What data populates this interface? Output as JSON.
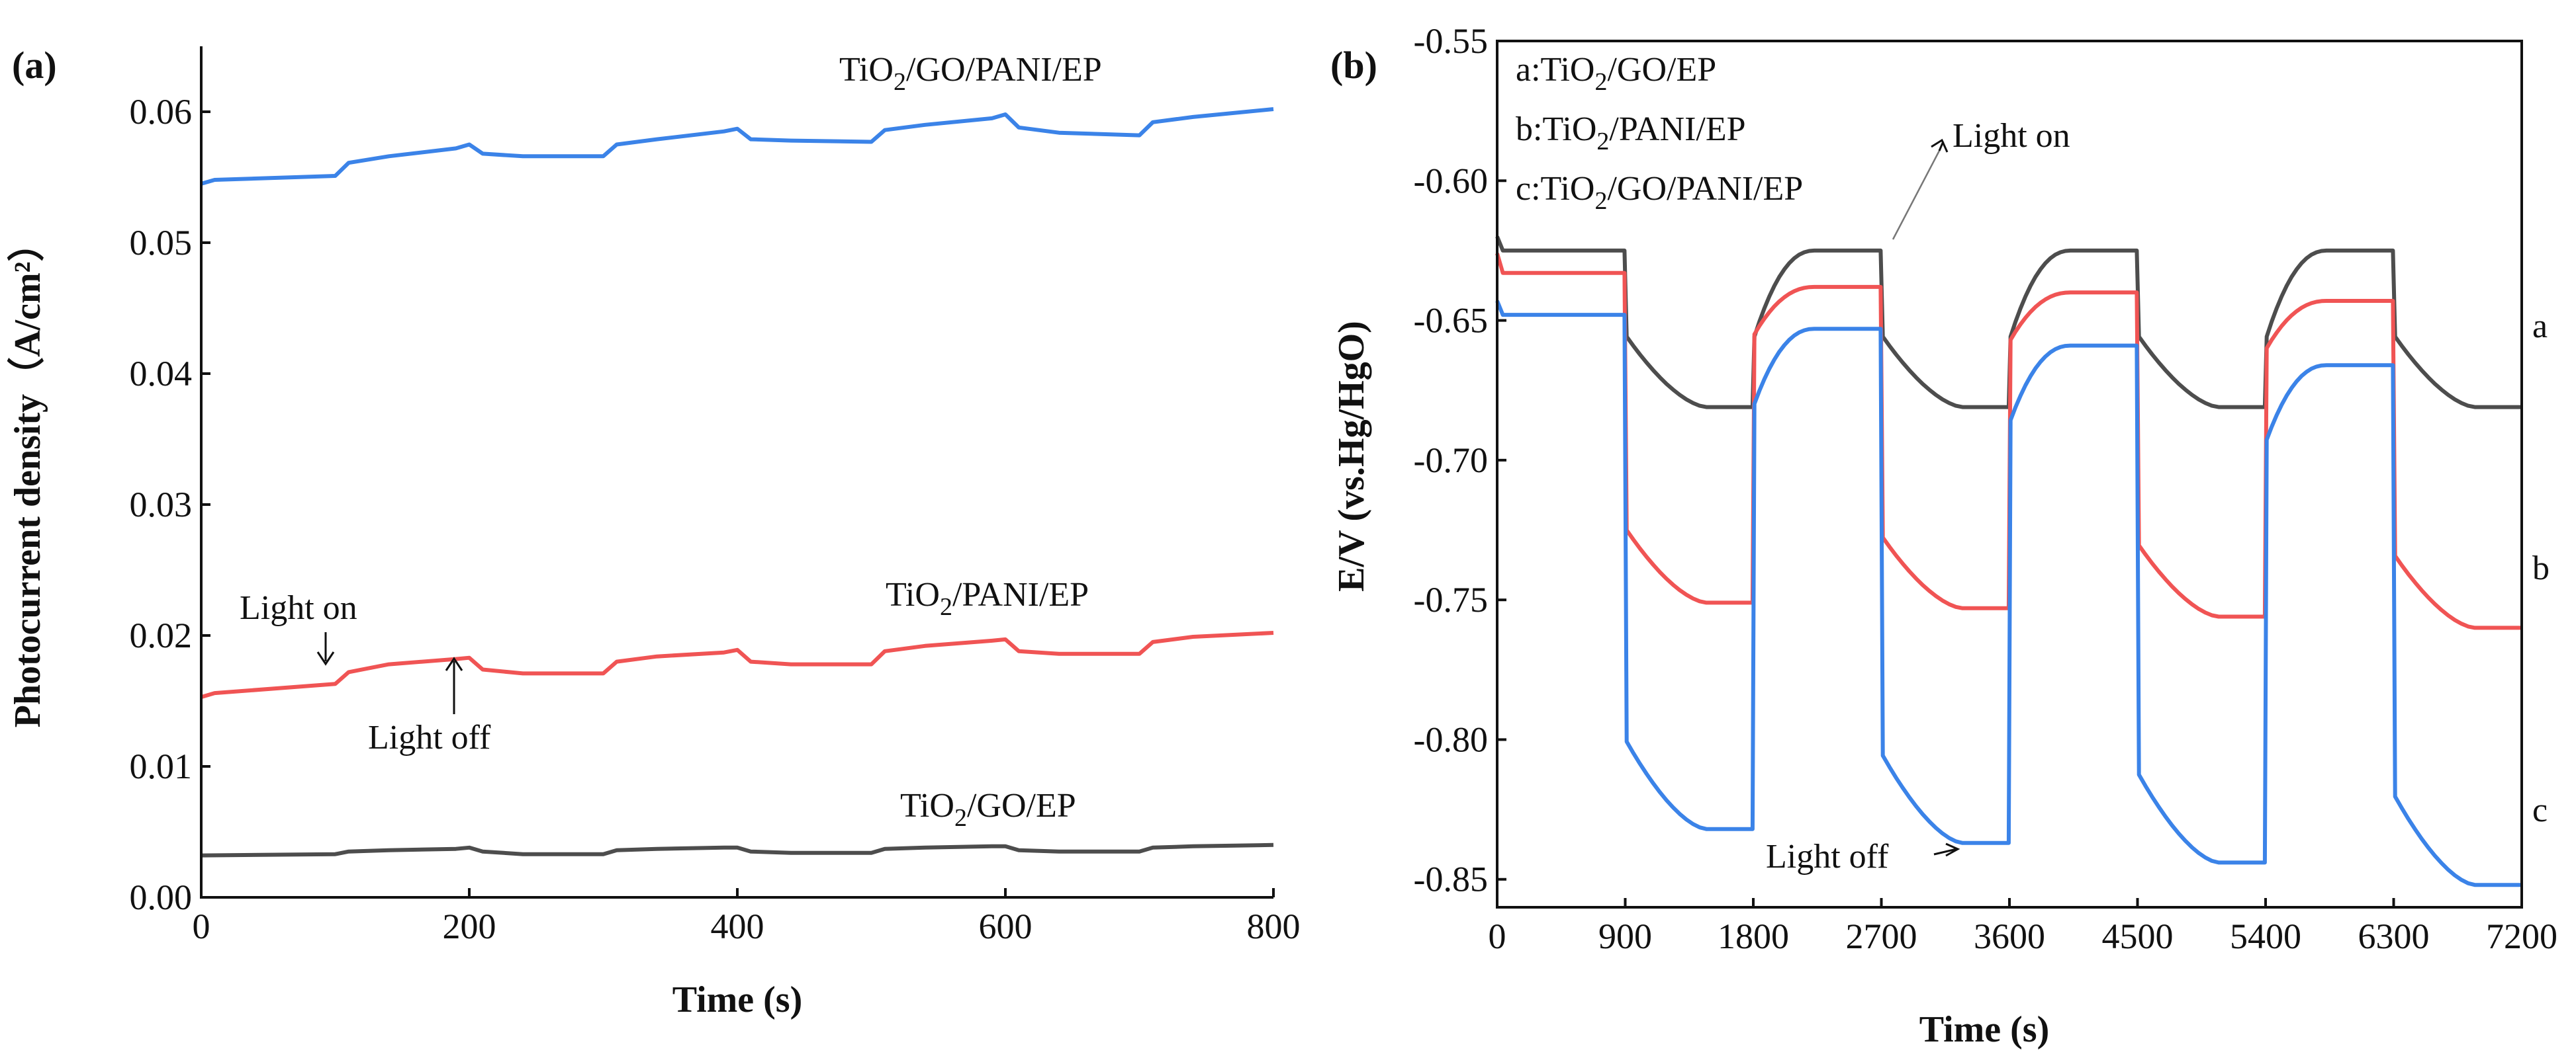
{
  "colors": {
    "blue": "#3b83e8",
    "red": "#f05454",
    "gray": "#4d4d4d"
  },
  "chart_data": [
    {
      "type": "line",
      "panel_label": "(a)",
      "xlabel": "Time (s)",
      "ylabel": "Photocurrent density（A/cm²）",
      "xlim": [
        0,
        800
      ],
      "ylim": [
        0,
        0.065
      ],
      "xticks": [
        "0",
        "200",
        "400",
        "600",
        "800"
      ],
      "xtick_values": [
        0,
        200,
        400,
        600,
        800
      ],
      "yticks": [
        "0.00",
        "0.01",
        "0.02",
        "0.03",
        "0.04",
        "0.05",
        "0.06"
      ],
      "ytick_values": [
        0,
        0.01,
        0.02,
        0.03,
        0.04,
        0.05,
        0.06
      ],
      "series": [
        {
          "name": "TiO2/GO/PANI/EP",
          "label_main": "TiO",
          "label_sub": "2",
          "label_rest": "/GO/PANI/EP",
          "color": "blue",
          "x": [
            0,
            10,
            100,
            110,
            140,
            190,
            200,
            210,
            240,
            300,
            310,
            340,
            390,
            400,
            410,
            440,
            500,
            510,
            540,
            590,
            600,
            610,
            640,
            700,
            710,
            740,
            800
          ],
          "y": [
            0.0545,
            0.0548,
            0.0551,
            0.0561,
            0.0566,
            0.0572,
            0.0575,
            0.0568,
            0.0566,
            0.0566,
            0.0575,
            0.0579,
            0.0585,
            0.0587,
            0.0579,
            0.0578,
            0.0577,
            0.0586,
            0.059,
            0.0595,
            0.0598,
            0.0588,
            0.0584,
            0.0582,
            0.0592,
            0.0596,
            0.0602
          ]
        },
        {
          "name": "TiO2/PANI/EP",
          "label_main": "TiO",
          "label_sub": "2",
          "label_rest": "/PANI/EP",
          "color": "red",
          "x": [
            0,
            10,
            100,
            110,
            140,
            190,
            200,
            210,
            240,
            300,
            310,
            340,
            390,
            400,
            410,
            440,
            500,
            510,
            540,
            590,
            600,
            610,
            640,
            700,
            710,
            740,
            800
          ],
          "y": [
            0.0153,
            0.0156,
            0.0163,
            0.0172,
            0.0178,
            0.0182,
            0.0183,
            0.0174,
            0.0171,
            0.0171,
            0.018,
            0.0184,
            0.0187,
            0.0189,
            0.018,
            0.0178,
            0.0178,
            0.0188,
            0.0192,
            0.0196,
            0.0197,
            0.0188,
            0.0186,
            0.0186,
            0.0195,
            0.0199,
            0.0202
          ]
        },
        {
          "name": "TiO2/GO/EP",
          "label_main": "TiO",
          "label_sub": "2",
          "label_rest": "/GO/EP",
          "color": "gray",
          "x": [
            0,
            100,
            110,
            140,
            190,
            200,
            210,
            240,
            300,
            310,
            340,
            390,
            400,
            410,
            440,
            500,
            510,
            540,
            590,
            600,
            610,
            640,
            700,
            710,
            740,
            800
          ],
          "y": [
            0.0032,
            0.0033,
            0.0035,
            0.0036,
            0.0037,
            0.0038,
            0.0035,
            0.0033,
            0.0033,
            0.0036,
            0.0037,
            0.0038,
            0.0038,
            0.0035,
            0.0034,
            0.0034,
            0.0037,
            0.0038,
            0.0039,
            0.0039,
            0.0036,
            0.0035,
            0.0035,
            0.0038,
            0.0039,
            0.004
          ]
        }
      ],
      "annotations": {
        "light_on": "Light on",
        "light_off": "Light off"
      }
    },
    {
      "type": "line",
      "panel_label": "(b)",
      "xlabel": "Time (s)",
      "ylabel": "E/V (vs.Hg/HgO)",
      "xlim": [
        0,
        7200
      ],
      "ylim": [
        -0.86,
        -0.55
      ],
      "xticks": [
        "0",
        "900",
        "1800",
        "2700",
        "3600",
        "4500",
        "5400",
        "6300",
        "7200"
      ],
      "xtick_values": [
        0,
        900,
        1800,
        2700,
        3600,
        4500,
        5400,
        6300,
        7200
      ],
      "yticks": [
        "-0.55",
        "-0.60",
        "-0.65",
        "-0.70",
        "-0.75",
        "-0.80",
        "-0.85"
      ],
      "ytick_values": [
        -0.55,
        -0.6,
        -0.65,
        -0.7,
        -0.75,
        -0.8,
        -0.85
      ],
      "legend": [
        {
          "prefix": "a:",
          "main": "TiO",
          "sub": "2",
          "rest": "/GO/EP"
        },
        {
          "prefix": "b:",
          "main": "TiO",
          "sub": "2",
          "rest": "/PANI/EP"
        },
        {
          "prefix": "c:",
          "main": "TiO",
          "sub": "2",
          "rest": "/GO/PANI/EP"
        }
      ],
      "series": [
        {
          "name": "a",
          "color": "gray",
          "start": -0.62,
          "light_on_level": -0.625,
          "light_off_level": -0.681,
          "drop": -0.655,
          "rise": -0.645
        },
        {
          "name": "b",
          "color": "red",
          "start": -0.626,
          "light_on_level": -0.633,
          "light_off_level": -0.752,
          "drop": -0.728,
          "rise": -0.665,
          "on_levels": [
            -0.633,
            -0.638,
            -0.64,
            -0.643
          ],
          "off_levels": [
            -0.751,
            -0.753,
            -0.756,
            -0.76
          ]
        },
        {
          "name": "c",
          "color": "blue",
          "start": -0.643,
          "light_on_level": -0.648,
          "light_off_level": -0.832,
          "drop": -0.8,
          "rise": -0.678,
          "on_levels": [
            -0.648,
            -0.653,
            -0.659,
            -0.666
          ],
          "off_levels": [
            -0.832,
            -0.837,
            -0.844,
            -0.852
          ]
        }
      ],
      "series_letters": [
        "a",
        "b",
        "c"
      ],
      "annotations": {
        "light_on": "Light on",
        "light_off": "Light off"
      }
    }
  ]
}
